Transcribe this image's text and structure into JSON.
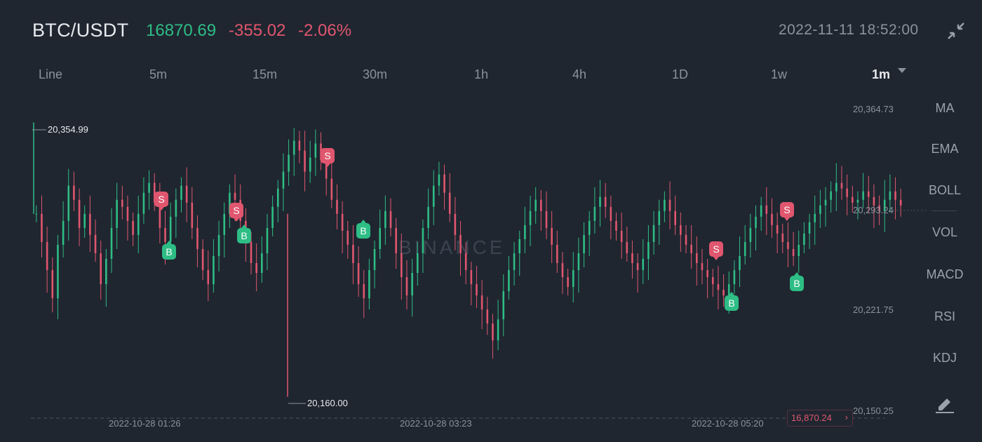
{
  "header": {
    "symbol": "BTC/USDT",
    "last_price": "16870.69",
    "change": "-355.02",
    "change_pct": "-2.06%",
    "datetime": "2022-11-11 18:52:00"
  },
  "intervals": [
    "Line",
    "5m",
    "15m",
    "30m",
    "1h",
    "4h",
    "1D",
    "1w",
    "1m"
  ],
  "active_interval": "1m",
  "indicators": [
    "MA",
    "EMA",
    "BOLL",
    "VOL",
    "MACD",
    "RSI",
    "KDJ"
  ],
  "watermark": "BINANCE",
  "colors": {
    "up": "#2ebd85",
    "down": "#e0566e",
    "background": "#1f2630"
  },
  "icons": {
    "collapse": "collapse-icon",
    "draw": "pencil-icon",
    "arrow": "chevron-right-icon"
  },
  "current_price_label": "16,870.24",
  "chart_data": {
    "type": "candlestick",
    "y_ticks": [
      "20,364.73",
      "20,293.24",
      "20,221.75",
      "20,150.25"
    ],
    "x_ticks": [
      "2022-10-28 01:26",
      "2022-10-28 03:23",
      "2022-10-28 05:20"
    ],
    "ylim": [
      20150.25,
      20364.73
    ],
    "high_label": "20,354.99",
    "low_label": "20,160.00",
    "high_value": 20354.99,
    "low_value": 20160.0,
    "markers_sell": [
      "S",
      "S",
      "S",
      "S",
      "S"
    ],
    "markers_buy": [
      "B",
      "B",
      "B",
      "B",
      "B"
    ],
    "closes": [
      20290,
      20270,
      20250,
      20230,
      20268,
      20285,
      20310,
      20300,
      20280,
      20290,
      20275,
      20262,
      20240,
      20258,
      20280,
      20300,
      20295,
      20285,
      20275,
      20290,
      20305,
      20312,
      20298,
      20280,
      20270,
      20288,
      20300,
      20310,
      20298,
      20280,
      20265,
      20250,
      20240,
      20260,
      20275,
      20290,
      20305,
      20300,
      20285,
      20270,
      20255,
      20248,
      20262,
      20280,
      20295,
      20308,
      20320,
      20332,
      20342,
      20335,
      20320,
      20330,
      20340,
      20328,
      20315,
      20300,
      20290,
      20278,
      20268,
      20255,
      20240,
      20230,
      20250,
      20265,
      20280,
      20292,
      20280,
      20262,
      20245,
      20232,
      20248,
      20262,
      20280,
      20295,
      20310,
      20318,
      20305,
      20290,
      20275,
      20262,
      20250,
      20240,
      20232,
      20222,
      20212,
      20200,
      20215,
      20235,
      20250,
      20262,
      20272,
      20282,
      20292,
      20300,
      20292,
      20280,
      20268,
      20255,
      20245,
      20238,
      20250,
      20262,
      20275,
      20285,
      20295,
      20302,
      20295,
      20285,
      20278,
      20270,
      20262,
      20255,
      20250,
      20258,
      20270,
      20282,
      20292,
      20300,
      20292,
      20282,
      20275,
      20268,
      20262,
      20255,
      20250,
      20245,
      20240,
      20236,
      20232,
      20240,
      20250,
      20260,
      20270,
      20280,
      20288,
      20296,
      20290,
      20282,
      20276,
      20270,
      20265,
      20260,
      20268,
      20276,
      20284,
      20290,
      20296,
      20300,
      20306,
      20312,
      20308,
      20302,
      20298,
      20300,
      20306,
      20302,
      20296,
      20292,
      20300,
      20306,
      20300,
      20296
    ]
  }
}
